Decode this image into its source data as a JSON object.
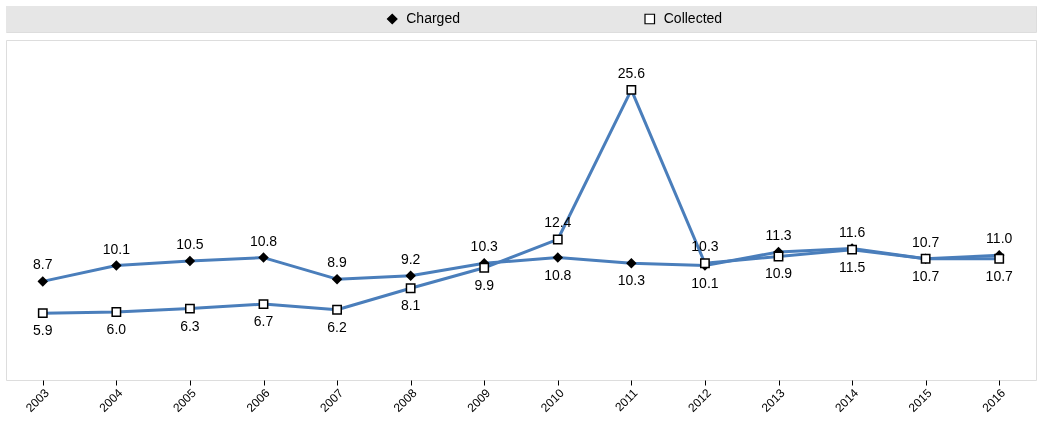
{
  "chart_data": {
    "type": "line",
    "categories": [
      "2003",
      "2004",
      "2005",
      "2006",
      "2007",
      "2008",
      "2009",
      "2010",
      "2011",
      "2012",
      "2013",
      "2014",
      "2015",
      "2016"
    ],
    "series": [
      {
        "name": "Charged",
        "color": "#4a7ebb",
        "marker": "diamond",
        "values": [
          8.7,
          10.1,
          10.5,
          10.8,
          8.9,
          9.2,
          10.3,
          10.8,
          10.3,
          10.1,
          11.3,
          11.6,
          10.7,
          11.0
        ],
        "value_labels": [
          "8.7",
          "10.1",
          "10.5",
          "10.8",
          "8.9",
          "9.2",
          "10.3",
          "10.8",
          "10.3",
          "10.1",
          "11.3",
          "11.6",
          "10.7",
          "11.0"
        ]
      },
      {
        "name": "Collected",
        "color": "#4a7ebb",
        "marker": "square",
        "values": [
          5.9,
          6.0,
          6.3,
          6.7,
          6.2,
          8.1,
          9.9,
          12.4,
          25.6,
          10.3,
          10.9,
          11.5,
          10.7,
          10.7
        ],
        "value_labels": [
          "5.9",
          "6.0",
          "6.3",
          "6.7",
          "6.2",
          "8.1",
          "9.9",
          "12.4",
          "25.6",
          "10.3",
          "10.9",
          "11.5",
          "10.7",
          "10.7"
        ]
      }
    ],
    "ylim": [
      0,
      30
    ],
    "tick_labels": "x",
    "legend": "top",
    "grid": false
  }
}
